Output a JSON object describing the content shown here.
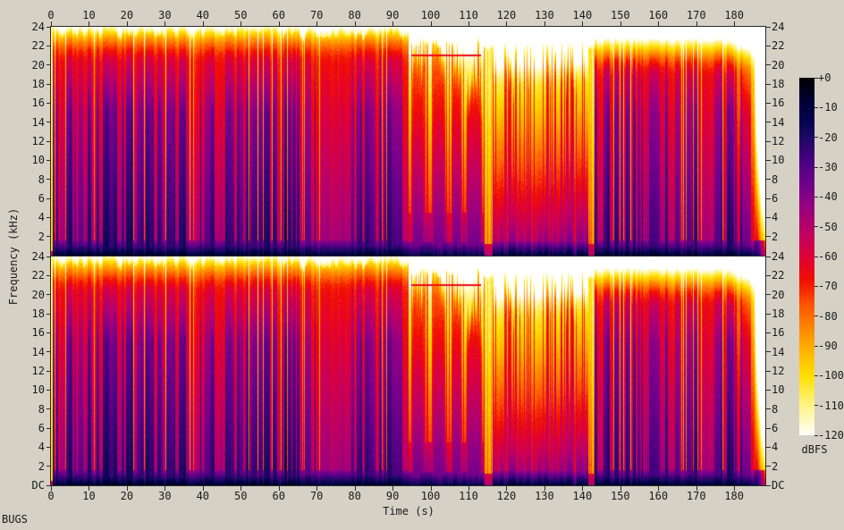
{
  "misc": {
    "corner_text": "BUGS",
    "background_color": "#d5d1c5",
    "text_color": "#1a1a1a"
  },
  "axes": {
    "time_label": "Time (s)",
    "freq_label": "Frequency (kHz)",
    "time_ticks": [
      0,
      10,
      20,
      30,
      40,
      50,
      60,
      70,
      80,
      90,
      100,
      110,
      120,
      130,
      140,
      150,
      160,
      170,
      180
    ],
    "freq_ticks_khz": [
      24,
      22,
      20,
      18,
      16,
      14,
      12,
      10,
      8,
      6,
      4,
      2,
      0
    ],
    "freq_dc_label": "DC",
    "time_axis_max_s": 188.2,
    "freq_axis_max_khz": 24
  },
  "colorbar": {
    "unit": "dBFS",
    "tick_labels": [
      "+0",
      "-10",
      "-20",
      "-30",
      "-40",
      "-50",
      "-60",
      "-70",
      "-80",
      "-90",
      "-100",
      "-110",
      "-120"
    ],
    "max_db": 0,
    "min_db": -120,
    "palette_stops": [
      [
        0,
        "#000000"
      ],
      [
        -8,
        "#000038"
      ],
      [
        -14,
        "#05054e"
      ],
      [
        -20,
        "#1e0a64"
      ],
      [
        -27,
        "#46007f"
      ],
      [
        -36,
        "#73008c"
      ],
      [
        -44,
        "#9b0080"
      ],
      [
        -52,
        "#c00062"
      ],
      [
        -60,
        "#e00038"
      ],
      [
        -68,
        "#f31000"
      ],
      [
        -76,
        "#fd5500"
      ],
      [
        -84,
        "#ff8800"
      ],
      [
        -92,
        "#ffb800"
      ],
      [
        -100,
        "#ffe000"
      ],
      [
        -108,
        "#fff170"
      ],
      [
        -114,
        "#fff9b8"
      ],
      [
        -120,
        "#ffffff"
      ]
    ]
  },
  "chart_data": {
    "type": "heatmap",
    "subtype": "stereo-audio-spectrogram",
    "channels": [
      "channel-1",
      "channel-2"
    ],
    "xlabel": "Time (s)",
    "ylabel": "Frequency (kHz)",
    "zlabel": "dBFS",
    "x_range_s": [
      0,
      188.2
    ],
    "y_range_khz": [
      0,
      24
    ],
    "z_range_db": [
      -120,
      0
    ],
    "x_ticks": [
      0,
      10,
      20,
      30,
      40,
      50,
      60,
      70,
      80,
      90,
      100,
      110,
      120,
      130,
      140,
      150,
      160,
      170,
      180
    ],
    "y_ticks_khz": [
      24,
      22,
      20,
      18,
      16,
      14,
      12,
      10,
      8,
      6,
      4,
      2,
      0
    ],
    "z_ticks_db": [
      0,
      -10,
      -20,
      -30,
      -40,
      -50,
      -60,
      -70,
      -80,
      -90,
      -100,
      -110,
      -120
    ],
    "start_transient": {
      "t1_s": 0.45,
      "level_db": -96,
      "dc_level_db": -58
    },
    "tone_line": {
      "freq_khz": 21.0,
      "t0_s": 94.9,
      "t1_s": 113.2,
      "level_db": -65
    },
    "sections": [
      {
        "name": "intro-loud",
        "kind": "loud",
        "t0": 0.45,
        "t1": 94.3,
        "top_khz": 23.1,
        "base_db": -46,
        "slope_db_per_khz": 1.05,
        "rolloff_start_khz": 20
      },
      {
        "name": "breakdown",
        "kind": "breakdown",
        "t0": 94.3,
        "t1": 114.2,
        "top_khz": 22.0,
        "base_db": -62,
        "slope_db_per_khz": 2.4,
        "mountains": [
          [
            94.7,
            98.7,
            19.5
          ],
          [
            100.1,
            104.3,
            20.0
          ],
          [
            105.2,
            108.6,
            19.0
          ],
          [
            109.1,
            113.9,
            16.5
          ]
        ]
      },
      {
        "name": "bridge-quiet",
        "kind": "gap",
        "t0": 114.2,
        "t1": 116.3,
        "top_khz": 21.6
      },
      {
        "name": "mid-groove",
        "kind": "mid",
        "t0": 116.3,
        "t1": 141.6,
        "top_khz": 21.8,
        "base_db": -48,
        "slope_db_per_khz": 3.2
      },
      {
        "name": "pre-outro-gap",
        "kind": "gap",
        "t0": 141.6,
        "t1": 143.2,
        "top_khz": 21.6
      },
      {
        "name": "outro-loud",
        "kind": "loud",
        "t0": 143.2,
        "t1": 185.3,
        "top_khz": 22.35,
        "base_db": -46,
        "slope_db_per_khz": 1.05,
        "rolloff_start_khz": 18.5,
        "decay_from_s": 177
      },
      {
        "name": "fade-out",
        "kind": "fade",
        "t0": 185.3,
        "t1": 188.2
      }
    ]
  }
}
